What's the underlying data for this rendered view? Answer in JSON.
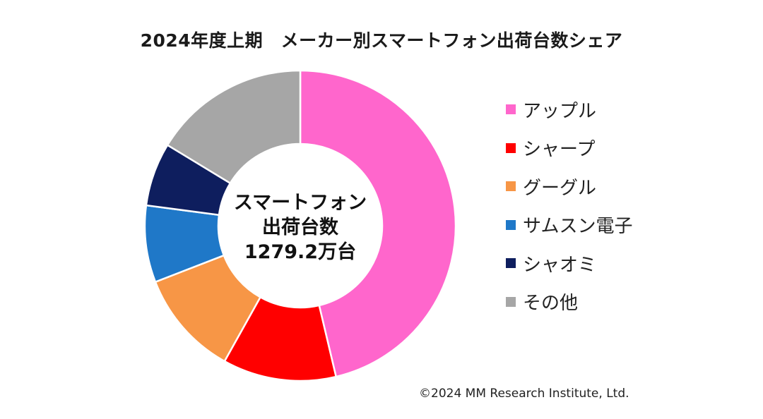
{
  "chart_data": {
    "type": "pie",
    "title": "2024年度上期　メーカー別スマートフォン出荷台数シェア",
    "center_label": [
      "スマートフォン",
      "出荷台数",
      "1279.2万台"
    ],
    "categories": [
      "アップル",
      "シャープ",
      "グーグル",
      "サムスン電子",
      "シャオミ",
      "その他"
    ],
    "values": [
      46.3,
      11.8,
      11.0,
      8.0,
      6.6,
      16.3
    ],
    "colors": [
      "#FF66CC",
      "#FF0000",
      "#F79646",
      "#1F78C8",
      "#0E1E5E",
      "#A6A6A6"
    ],
    "legend": "right"
  },
  "copyright": "©2024 MM Research Institute, Ltd."
}
